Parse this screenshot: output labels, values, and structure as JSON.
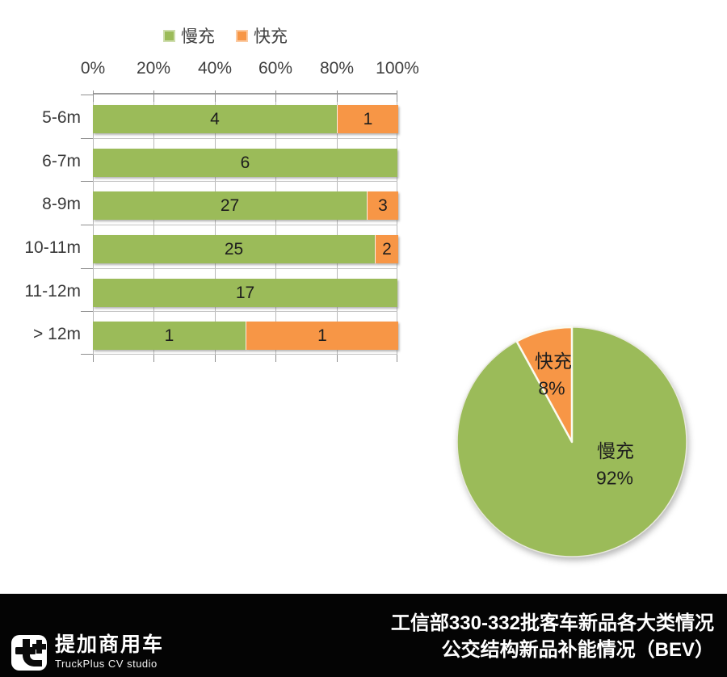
{
  "chart_data": [
    {
      "type": "bar",
      "subtype": "horizontal-stacked-100pct",
      "categories": [
        "5-6m",
        "6-7m",
        "8-9m",
        "10-11m",
        "11-12m",
        "> 12m"
      ],
      "series": [
        {
          "name": "慢充",
          "color": "#9BBB59",
          "values": [
            4,
            6,
            27,
            25,
            17,
            1
          ]
        },
        {
          "name": "快充",
          "color": "#F79646",
          "values": [
            1,
            0,
            3,
            2,
            0,
            1
          ]
        }
      ],
      "x_ticks": [
        "0%",
        "20%",
        "40%",
        "60%",
        "80%",
        "100%"
      ],
      "xlim": [
        0,
        1
      ],
      "grid": true,
      "legend_position": "top"
    },
    {
      "type": "pie",
      "direction": "clockwise",
      "start_angle_deg": 0,
      "slices": [
        {
          "label": "慢充",
          "value": 92,
          "display": "92%",
          "color": "#9BBB59"
        },
        {
          "label": "快充",
          "value": 8,
          "display": "8%",
          "color": "#F79646"
        }
      ]
    }
  ],
  "footer": {
    "title_line1": "工信部330-332批客车新品各大类情况",
    "title_line2": "公交结构新品补能情况（BEV）",
    "logo_cn": "提加商用车",
    "logo_en": "TruckPlus CV studio"
  },
  "colors": {
    "slow_green": "#9BBB59",
    "fast_orange": "#F79646",
    "grid_gray": "#BBBBBB",
    "axis_text": "#3F3F3F",
    "footer_black": "#040404",
    "footer_text": "#FFFFFF"
  }
}
